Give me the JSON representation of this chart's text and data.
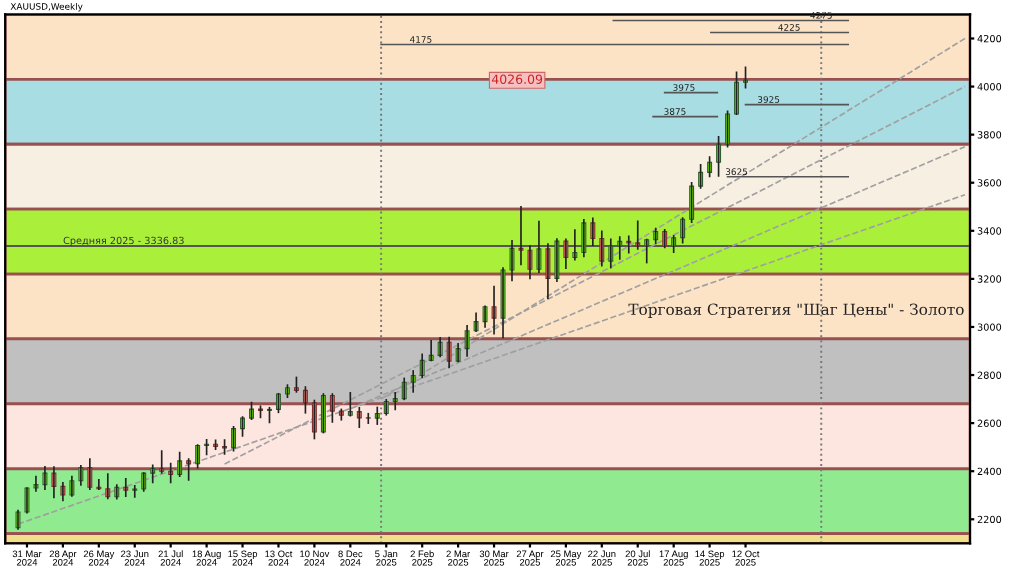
{
  "chart_data": {
    "type": "candlestick",
    "title": "XAUUSD,Weekly",
    "x": [
      "2024-03-24",
      "2024-03-31",
      "2024-04-07",
      "2024-04-14",
      "2024-04-21",
      "2024-04-28",
      "2024-05-05",
      "2024-05-12",
      "2024-05-19",
      "2024-05-26",
      "2024-06-02",
      "2024-06-09",
      "2024-06-16",
      "2024-06-23",
      "2024-06-30",
      "2024-07-07",
      "2024-07-14",
      "2024-07-21",
      "2024-07-28",
      "2024-08-04",
      "2024-08-11",
      "2024-08-18",
      "2024-08-25",
      "2024-09-01",
      "2024-09-08",
      "2024-09-15",
      "2024-09-22",
      "2024-09-29",
      "2024-10-06",
      "2024-10-13",
      "2024-10-20",
      "2024-10-27",
      "2024-11-03",
      "2024-11-10",
      "2024-11-17",
      "2024-11-24",
      "2024-12-01",
      "2024-12-08",
      "2024-12-15",
      "2024-12-22",
      "2024-12-29",
      "2025-01-05",
      "2025-01-12",
      "2025-01-19",
      "2025-01-26",
      "2025-02-02",
      "2025-02-09",
      "2025-02-16",
      "2025-02-23",
      "2025-03-02",
      "2025-03-09",
      "2025-03-16",
      "2025-03-23",
      "2025-03-30",
      "2025-04-06",
      "2025-04-13",
      "2025-04-20",
      "2025-04-27",
      "2025-05-04",
      "2025-05-11",
      "2025-05-18",
      "2025-05-25",
      "2025-06-01",
      "2025-06-08",
      "2025-06-15",
      "2025-06-22",
      "2025-06-29",
      "2025-07-06",
      "2025-07-13",
      "2025-07-20",
      "2025-07-27",
      "2025-08-03",
      "2025-08-10",
      "2025-08-17",
      "2025-08-24",
      "2025-08-31",
      "2025-09-07",
      "2025-09-14",
      "2025-09-21",
      "2025-09-28",
      "2025-10-05",
      "2025-10-12"
    ],
    "ohlc": [
      [
        2165,
        2236,
        2160,
        2230
      ],
      [
        2230,
        2330,
        2228,
        2330
      ],
      [
        2330,
        2378,
        2318,
        2344
      ],
      [
        2344,
        2418,
        2325,
        2392
      ],
      [
        2392,
        2417,
        2291,
        2337
      ],
      [
        2337,
        2352,
        2278,
        2301
      ],
      [
        2301,
        2378,
        2297,
        2360
      ],
      [
        2360,
        2422,
        2343,
        2415
      ],
      [
        2415,
        2450,
        2325,
        2333
      ],
      [
        2333,
        2364,
        2325,
        2327
      ],
      [
        2327,
        2388,
        2287,
        2294
      ],
      [
        2294,
        2342,
        2286,
        2333
      ],
      [
        2333,
        2368,
        2296,
        2321
      ],
      [
        2321,
        2339,
        2293,
        2326
      ],
      [
        2326,
        2392,
        2318,
        2392
      ],
      [
        2392,
        2424,
        2353,
        2411
      ],
      [
        2411,
        2484,
        2393,
        2400
      ],
      [
        2400,
        2432,
        2353,
        2386
      ],
      [
        2386,
        2477,
        2379,
        2443
      ],
      [
        2443,
        2450,
        2364,
        2431
      ],
      [
        2431,
        2509,
        2415,
        2507
      ],
      [
        2507,
        2531,
        2470,
        2512
      ],
      [
        2512,
        2528,
        2492,
        2503
      ],
      [
        2503,
        2529,
        2472,
        2497
      ],
      [
        2497,
        2585,
        2485,
        2577
      ],
      [
        2577,
        2625,
        2547,
        2621
      ],
      [
        2621,
        2685,
        2616,
        2658
      ],
      [
        2658,
        2670,
        2624,
        2653
      ],
      [
        2653,
        2664,
        2603,
        2657
      ],
      [
        2657,
        2722,
        2645,
        2721
      ],
      [
        2721,
        2758,
        2708,
        2747
      ],
      [
        2747,
        2790,
        2730,
        2736
      ],
      [
        2736,
        2750,
        2643,
        2685
      ],
      [
        2685,
        2694,
        2536,
        2563
      ],
      [
        2563,
        2721,
        2561,
        2715
      ],
      [
        2715,
        2721,
        2605,
        2650
      ],
      [
        2650,
        2657,
        2614,
        2633
      ],
      [
        2633,
        2726,
        2631,
        2648
      ],
      [
        2648,
        2664,
        2583,
        2622
      ],
      [
        2622,
        2639,
        2600,
        2621
      ],
      [
        2621,
        2665,
        2596,
        2640
      ],
      [
        2640,
        2697,
        2635,
        2690
      ],
      [
        2690,
        2726,
        2657,
        2702
      ],
      [
        2702,
        2786,
        2699,
        2770
      ],
      [
        2770,
        2817,
        2730,
        2798
      ],
      [
        2798,
        2886,
        2790,
        2861
      ],
      [
        2861,
        2942,
        2861,
        2882
      ],
      [
        2882,
        2955,
        2877,
        2936
      ],
      [
        2936,
        2956,
        2832,
        2858
      ],
      [
        2858,
        2930,
        2857,
        2910
      ],
      [
        2910,
        3005,
        2880,
        2984
      ],
      [
        2984,
        3057,
        2983,
        3022
      ],
      [
        3022,
        3086,
        3000,
        3084
      ],
      [
        3084,
        3168,
        2972,
        3037
      ],
      [
        3037,
        3245,
        2957,
        3237
      ],
      [
        3237,
        3358,
        3194,
        3327
      ],
      [
        3327,
        3500,
        3260,
        3319
      ],
      [
        3319,
        3336,
        3202,
        3240
      ],
      [
        3240,
        3438,
        3228,
        3325
      ],
      [
        3325,
        3345,
        3120,
        3202
      ],
      [
        3202,
        3366,
        3190,
        3357
      ],
      [
        3357,
        3365,
        3245,
        3289
      ],
      [
        3289,
        3403,
        3280,
        3310
      ],
      [
        3310,
        3446,
        3293,
        3433
      ],
      [
        3433,
        3452,
        3340,
        3368
      ],
      [
        3368,
        3398,
        3255,
        3274
      ],
      [
        3274,
        3365,
        3247,
        3337
      ],
      [
        3337,
        3374,
        3283,
        3356
      ],
      [
        3356,
        3377,
        3309,
        3350
      ],
      [
        3350,
        3439,
        3325,
        3337
      ],
      [
        3337,
        3363,
        3268,
        3363
      ],
      [
        3363,
        3409,
        3348,
        3397
      ],
      [
        3397,
        3404,
        3331,
        3336
      ],
      [
        3336,
        3379,
        3311,
        3371
      ],
      [
        3371,
        3453,
        3351,
        3448
      ],
      [
        3448,
        3600,
        3436,
        3586
      ],
      [
        3586,
        3674,
        3578,
        3643
      ],
      [
        3643,
        3707,
        3626,
        3685
      ],
      [
        3685,
        3791,
        3628,
        3760
      ],
      [
        3760,
        3897,
        3750,
        3886
      ],
      [
        3886,
        4059,
        3885,
        4018
      ],
      [
        4018,
        4080,
        3995,
        4026
      ]
    ],
    "series": [
      {
        "type": "line",
        "color": "#a0a0a0",
        "line_style": "dashed",
        "x": [
          "2024-12-08",
          "2026-04-01"
        ],
        "values": [
          2660,
          3750
        ]
      },
      {
        "type": "line",
        "color": "#a0a0a0",
        "line_style": "dashed",
        "x": [
          "2024-09-01",
          "2026-04-01"
        ],
        "values": [
          2430,
          4000
        ]
      },
      {
        "type": "line",
        "color": "#a0a0a0",
        "line_style": "dashed",
        "x": [
          "2024-03-24",
          "2026-04-01"
        ],
        "values": [
          2180,
          3550
        ]
      },
      {
        "type": "line",
        "color": "#a0a0a0",
        "line_style": "dashed",
        "x": [
          "2025-01-01",
          "2026-04-01"
        ],
        "values": [
          2700,
          4200
        ]
      },
      {
        "type": "line",
        "color": "#555555",
        "line_style": "solid",
        "x": [
          "2025-07-01",
          "2025-12-31"
        ],
        "values": [
          4275,
          4275
        ]
      },
      {
        "type": "line",
        "color": "#555555",
        "line_style": "solid",
        "x": [
          "2025-01-01",
          "2025-12-31"
        ],
        "values": [
          4175,
          4175
        ]
      },
      {
        "type": "line",
        "color": "#555555",
        "line_style": "solid",
        "x": [
          "2025-09-15",
          "2025-12-31"
        ],
        "values": [
          4225,
          4225
        ]
      },
      {
        "type": "line",
        "color": "#555555",
        "line_style": "solid",
        "x": [
          "2025-08-10",
          "2025-09-20"
        ],
        "values": [
          3975,
          3975
        ]
      },
      {
        "type": "line",
        "color": "#555555",
        "line_style": "solid",
        "x": [
          "2025-10-12",
          "2025-12-31"
        ],
        "values": [
          3925,
          3925
        ]
      },
      {
        "type": "line",
        "color": "#555555",
        "line_style": "solid",
        "x": [
          "2025-08-01",
          "2025-09-20"
        ],
        "values": [
          3875,
          3875
        ]
      },
      {
        "type": "line",
        "color": "#555555",
        "line_style": "solid",
        "x": [
          "2025-09-28",
          "2025-12-31"
        ],
        "values": [
          3625,
          3625
        ]
      }
    ],
    "annotations": [
      {
        "text": "4275",
        "x": "2025-12-10",
        "y": 4275
      },
      {
        "text": "4175",
        "x": "2025-02-01",
        "y": 4175
      },
      {
        "text": "4225",
        "x": "2025-11-15",
        "y": 4225
      },
      {
        "text": "3975",
        "x": "2025-08-25",
        "y": 3975
      },
      {
        "text": "3925",
        "x": "2025-10-30",
        "y": 3925
      },
      {
        "text": "3875",
        "x": "2025-08-18",
        "y": 3875
      },
      {
        "text": "3625",
        "x": "2025-10-05",
        "y": 3625
      },
      {
        "text": "4026.09",
        "x": "2025-04-17",
        "y": 4026.09
      },
      "Торговая Стратегия \"Шаг Цены\" - Золото"
    ],
    "bands": [
      {
        "axis": "y",
        "from": 4030,
        "to": 4300,
        "color": "#fde3c6"
      },
      {
        "axis": "y",
        "from": 3760,
        "to": 4030,
        "color": "#a7dde3"
      },
      {
        "axis": "y",
        "from": 3490,
        "to": 3760,
        "color": "#f8efe3"
      },
      {
        "axis": "y",
        "from": 3220,
        "to": 3490,
        "color": "#aaf03a"
      },
      {
        "axis": "y",
        "from": 2950,
        "to": 3220,
        "color": "#fde3c6"
      },
      {
        "axis": "y",
        "from": 2680,
        "to": 2950,
        "color": "#c0c0c0"
      },
      {
        "axis": "y",
        "from": 2410,
        "to": 2680,
        "color": "#fde5e0"
      },
      {
        "axis": "y",
        "from": 2140,
        "to": 2410,
        "color": "#90ea90"
      },
      {
        "axis": "y",
        "from": 2100,
        "to": 2140,
        "color": "#f0e08c"
      }
    ],
    "ref_lines": [
      {
        "axis": "y",
        "value": 3336.83,
        "label": "Средняя 2025 - 3336.83",
        "color": "#555555",
        "line_style": "solid"
      },
      {
        "axis": "x",
        "value": "2025-01-01",
        "color": "#777777",
        "line_style": "dotted"
      },
      {
        "axis": "x",
        "value": "2025-12-10",
        "color": "#777777",
        "line_style": "dotted"
      }
    ],
    "xlim": [
      "2024-03-14",
      "2026-04-05"
    ],
    "xticks": [
      {
        "value": "2024-03-31",
        "label": "31 Mar 2024"
      },
      {
        "value": "2024-04-28",
        "label": "28 Apr 2024"
      },
      {
        "value": "2024-05-26",
        "label": "26 May 2024"
      },
      {
        "value": "2024-06-23",
        "label": "23 Jun 2024"
      },
      {
        "value": "2024-07-21",
        "label": "21 Jul 2024"
      },
      {
        "value": "2024-08-18",
        "label": "18 Aug 2024"
      },
      {
        "value": "2024-09-15",
        "label": "15 Sep 2024"
      },
      {
        "value": "2024-10-13",
        "label": "13 Oct 2024"
      },
      {
        "value": "2024-11-10",
        "label": "10 Nov 2024"
      },
      {
        "value": "2024-12-08",
        "label": "8 Dec 2024"
      },
      {
        "value": "2025-01-05",
        "label": "5 Jan 2025"
      },
      {
        "value": "2025-02-02",
        "label": "2 Feb 2025"
      },
      {
        "value": "2025-03-02",
        "label": "2 Mar 2025"
      },
      {
        "value": "2025-03-30",
        "label": "30 Mar 2025"
      },
      {
        "value": "2025-04-27",
        "label": "27 Apr 2025"
      },
      {
        "value": "2025-05-25",
        "label": "25 May 2025"
      },
      {
        "value": "2025-06-22",
        "label": "22 Jun 2025"
      },
      {
        "value": "2025-07-20",
        "label": "20 Jul 2025"
      },
      {
        "value": "2025-08-17",
        "label": "17 Aug 2025"
      },
      {
        "value": "2025-09-14",
        "label": "14 Sep 2025"
      },
      {
        "value": "2025-10-12",
        "label": "12 Oct 2025"
      }
    ],
    "ylim": [
      2100,
      4300
    ],
    "yticks": [
      2200,
      2400,
      2600,
      2800,
      3000,
      3200,
      3400,
      3600,
      3800,
      4000,
      4200
    ],
    "grid": false,
    "legend": false
  }
}
